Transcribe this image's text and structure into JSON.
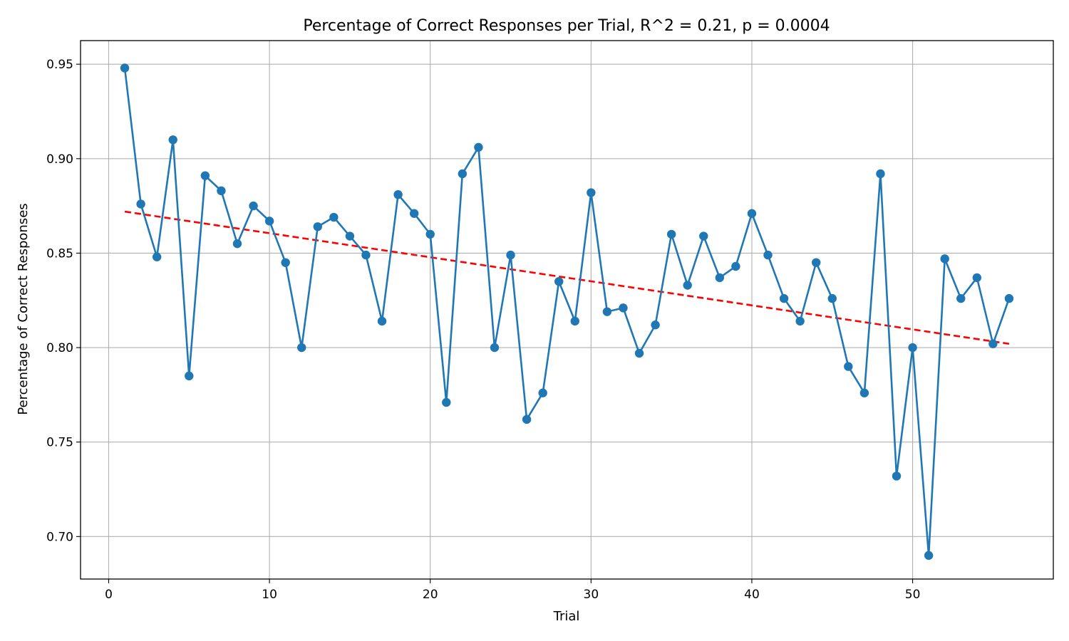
{
  "chart_data": {
    "type": "line",
    "title": "Percentage of Correct Responses per Trial, R^2 = 0.21, p = 0.0004",
    "xlabel": "Trial",
    "ylabel": "Percentage of Correct Responses",
    "xlim": [
      -1.75,
      58.75
    ],
    "ylim": [
      0.6775,
      0.9625
    ],
    "x_ticks": [
      0,
      10,
      20,
      30,
      40,
      50
    ],
    "y_ticks": [
      0.7,
      0.75,
      0.8,
      0.85,
      0.9,
      0.95
    ],
    "x_tick_labels": [
      "0",
      "10",
      "20",
      "30",
      "40",
      "50"
    ],
    "y_tick_labels": [
      "0.70",
      "0.75",
      "0.80",
      "0.85",
      "0.90",
      "0.95"
    ],
    "grid": true,
    "series": [
      {
        "kind": "line-with-markers",
        "color": "#1f77b4",
        "x": [
          1,
          2,
          3,
          4,
          5,
          6,
          7,
          8,
          9,
          10,
          11,
          12,
          13,
          14,
          15,
          16,
          17,
          18,
          19,
          20,
          21,
          22,
          23,
          24,
          25,
          26,
          27,
          28,
          29,
          30,
          31,
          32,
          33,
          34,
          35,
          36,
          37,
          38,
          39,
          40,
          41,
          42,
          43,
          44,
          45,
          46,
          47,
          48,
          49,
          50,
          51,
          52,
          53,
          54,
          55,
          56
        ],
        "values": [
          0.948,
          0.876,
          0.848,
          0.91,
          0.785,
          0.891,
          0.883,
          0.855,
          0.875,
          0.867,
          0.845,
          0.8,
          0.864,
          0.869,
          0.859,
          0.849,
          0.814,
          0.881,
          0.871,
          0.86,
          0.771,
          0.892,
          0.906,
          0.8,
          0.849,
          0.762,
          0.776,
          0.835,
          0.814,
          0.882,
          0.819,
          0.821,
          0.797,
          0.812,
          0.86,
          0.833,
          0.859,
          0.837,
          0.843,
          0.871,
          0.849,
          0.826,
          0.814,
          0.845,
          0.826,
          0.79,
          0.776,
          0.892,
          0.732,
          0.8,
          0.69,
          0.847,
          0.826,
          0.837,
          0.802,
          0.826
        ]
      },
      {
        "kind": "trend-line",
        "color": "#ff0000",
        "style": "dashed",
        "x": [
          1,
          56
        ],
        "values": [
          0.872,
          0.802
        ]
      }
    ]
  }
}
